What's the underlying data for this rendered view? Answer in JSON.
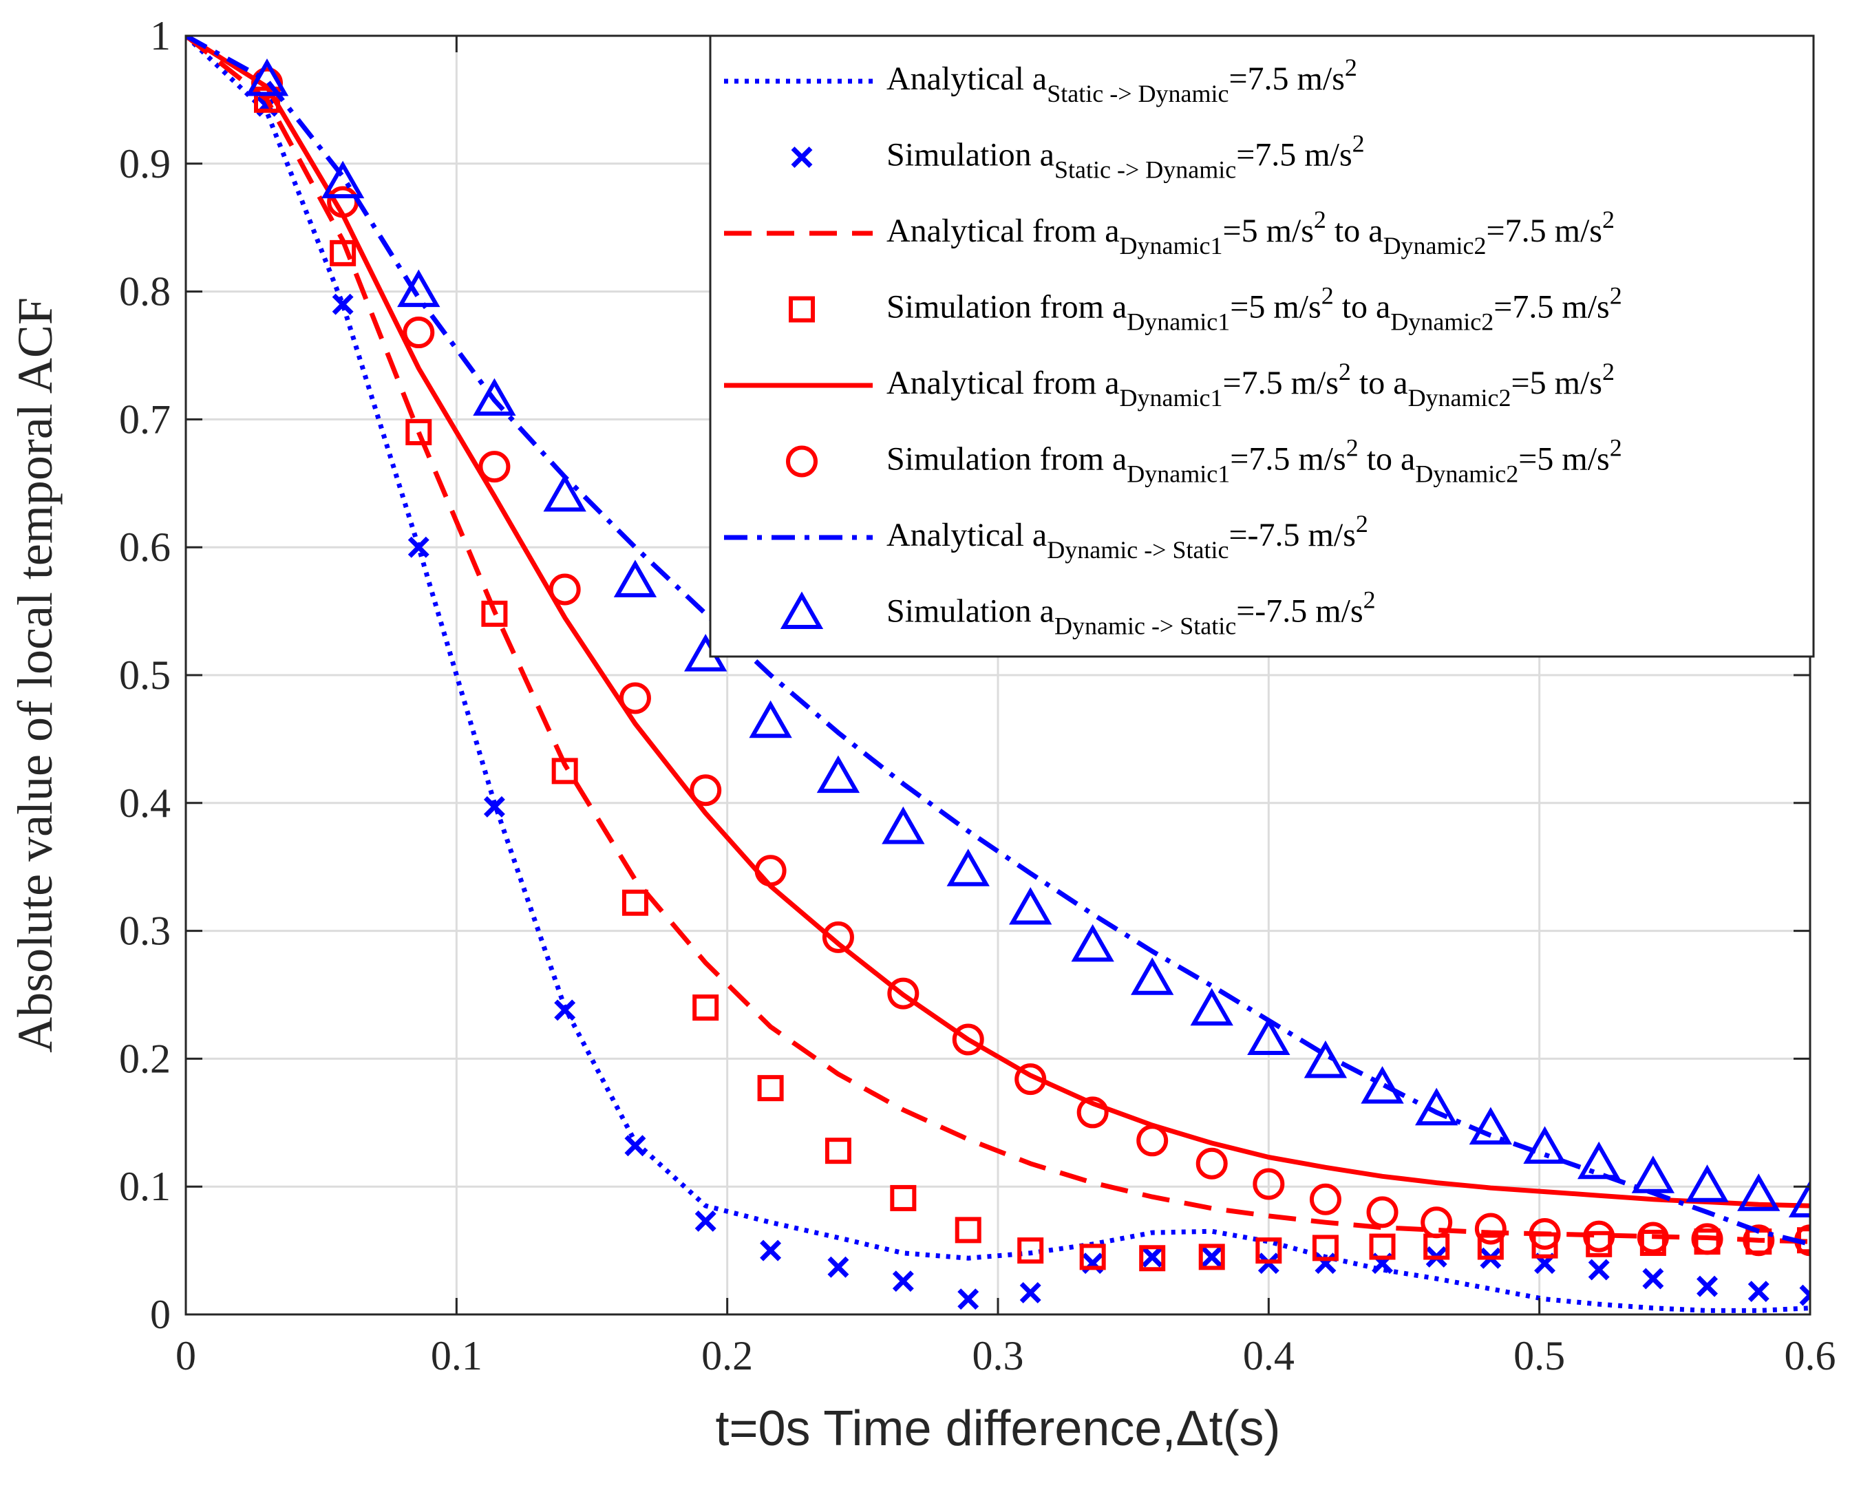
{
  "chart_data": {
    "type": "line",
    "title": "",
    "xlabel": "t=0s Time difference,Δt(s)",
    "ylabel": "Absolute value of local temporal ACF",
    "xlim": [
      0,
      0.6
    ],
    "ylim": [
      0,
      1
    ],
    "xticks": [
      0,
      0.1,
      0.2,
      0.3,
      0.4,
      0.5,
      0.6
    ],
    "xtick_labels": [
      "0",
      "0.1",
      "0.2",
      "0.3",
      "0.4",
      "0.5",
      "0.6"
    ],
    "yticks": [
      0,
      0.1,
      0.2,
      0.3,
      0.4,
      0.5,
      0.6,
      0.7,
      0.8,
      0.9,
      1
    ],
    "ytick_labels": [
      "0",
      "0.1",
      "0.2",
      "0.3",
      "0.4",
      "0.5",
      "0.6",
      "0.7",
      "0.8",
      "0.9",
      "1"
    ],
    "grid": true,
    "legend_position": "top-right",
    "sim_x": [
      0.03,
      0.058,
      0.086,
      0.114,
      0.14,
      0.166,
      0.192,
      0.216,
      0.241,
      0.265,
      0.289,
      0.312,
      0.335,
      0.357,
      0.379,
      0.4,
      0.421,
      0.442,
      0.462,
      0.482,
      0.502,
      0.522,
      0.542,
      0.562,
      0.581,
      0.6
    ],
    "series": [
      {
        "name": "Analytical aStatic -> Dynamic=7.5 m/s2",
        "style": "dotted",
        "color": "#0000ff",
        "x": [
          0,
          0.03,
          0.058,
          0.086,
          0.114,
          0.14,
          0.166,
          0.192,
          0.216,
          0.241,
          0.265,
          0.289,
          0.312,
          0.335,
          0.357,
          0.379,
          0.4,
          0.421,
          0.442,
          0.462,
          0.482,
          0.502,
          0.522,
          0.542,
          0.562,
          0.581,
          0.6
        ],
        "y": [
          1,
          0.94,
          0.79,
          0.6,
          0.4,
          0.24,
          0.135,
          0.085,
          0.072,
          0.06,
          0.048,
          0.044,
          0.048,
          0.055,
          0.064,
          0.065,
          0.057,
          0.045,
          0.035,
          0.028,
          0.02,
          0.012,
          0.008,
          0.005,
          0.003,
          0.003,
          0.005
        ],
        "legend": {
          "prefix": "Analytical a",
          "sub": "Static -> Dynamic",
          "mid": "=7.5 m/s",
          "sup": "2"
        }
      },
      {
        "name": "Simulation aStatic -> Dynamic=7.5 m/s2",
        "style": "marker-x",
        "color": "#0000ff",
        "y": [
          0.945,
          0.79,
          0.6,
          0.397,
          0.238,
          0.132,
          0.073,
          0.05,
          0.037,
          0.026,
          0.012,
          0.017,
          0.04,
          0.045,
          0.045,
          0.04,
          0.04,
          0.04,
          0.045,
          0.044,
          0.04,
          0.035,
          0.028,
          0.022,
          0.018,
          0.015
        ],
        "legend": {
          "prefix": "Simulation a",
          "sub": "Static -> Dynamic",
          "mid": "=7.5 m/s",
          "sup": "2"
        }
      },
      {
        "name": "Analytical from aDynamic1=5 m/s2 to aDynamic2=7.5 m/s2",
        "style": "dashed",
        "color": "#ff0000",
        "x": [
          0,
          0.03,
          0.058,
          0.086,
          0.114,
          0.14,
          0.166,
          0.192,
          0.216,
          0.241,
          0.265,
          0.289,
          0.312,
          0.335,
          0.357,
          0.379,
          0.4,
          0.421,
          0.442,
          0.462,
          0.482,
          0.502,
          0.522,
          0.542,
          0.562,
          0.581,
          0.6
        ],
        "y": [
          1,
          0.95,
          0.84,
          0.69,
          0.55,
          0.43,
          0.34,
          0.275,
          0.225,
          0.188,
          0.16,
          0.137,
          0.118,
          0.103,
          0.092,
          0.083,
          0.077,
          0.072,
          0.068,
          0.066,
          0.064,
          0.063,
          0.062,
          0.061,
          0.06,
          0.058,
          0.057
        ],
        "legend": {
          "prefix": "Analytical from a",
          "sub": "Dynamic1",
          "mid": "=5 m/s",
          "sup": "2",
          "mid2": " to a",
          "sub2": "Dynamic2",
          "mid3": "=7.5 m/s",
          "sup2": "2"
        }
      },
      {
        "name": "Simulation from aDynamic1=5 m/s2 to aDynamic2=7.5 m/s2",
        "style": "marker-square",
        "color": "#ff0000",
        "y": [
          0.95,
          0.83,
          0.69,
          0.548,
          0.425,
          0.322,
          0.24,
          0.177,
          0.128,
          0.091,
          0.066,
          0.05,
          0.045,
          0.044,
          0.045,
          0.05,
          0.052,
          0.053,
          0.053,
          0.053,
          0.054,
          0.055,
          0.056,
          0.057,
          0.057,
          0.058
        ],
        "legend": {
          "prefix": "Simulation from a",
          "sub": "Dynamic1",
          "mid": "=5 m/s",
          "sup": "2",
          "mid2": " to a",
          "sub2": "Dynamic2",
          "mid3": "=7.5 m/s",
          "sup2": "2"
        }
      },
      {
        "name": "Analytical from aDynamic1=7.5 m/s2 to aDynamic2=5 m/s2",
        "style": "solid",
        "color": "#ff0000",
        "x": [
          0,
          0.03,
          0.058,
          0.086,
          0.114,
          0.14,
          0.166,
          0.192,
          0.216,
          0.241,
          0.265,
          0.289,
          0.312,
          0.335,
          0.357,
          0.379,
          0.4,
          0.421,
          0.442,
          0.462,
          0.482,
          0.502,
          0.522,
          0.542,
          0.562,
          0.581,
          0.6
        ],
        "y": [
          1,
          0.96,
          0.86,
          0.74,
          0.64,
          0.545,
          0.462,
          0.392,
          0.335,
          0.29,
          0.25,
          0.215,
          0.187,
          0.165,
          0.148,
          0.134,
          0.123,
          0.115,
          0.108,
          0.103,
          0.099,
          0.096,
          0.093,
          0.09,
          0.088,
          0.086,
          0.085
        ],
        "legend": {
          "prefix": "Analytical from a",
          "sub": "Dynamic1",
          "mid": "=7.5 m/s",
          "sup": "2",
          "mid2": " to a",
          "sub2": "Dynamic2",
          "mid3": "=5 m/s",
          "sup2": "2"
        }
      },
      {
        "name": "Simulation from aDynamic1=7.5 m/s2 to aDynamic2=5 m/s2",
        "style": "marker-circle",
        "color": "#ff0000",
        "y": [
          0.963,
          0.87,
          0.768,
          0.663,
          0.567,
          0.482,
          0.41,
          0.347,
          0.295,
          0.251,
          0.215,
          0.184,
          0.158,
          0.136,
          0.118,
          0.102,
          0.09,
          0.08,
          0.072,
          0.067,
          0.063,
          0.061,
          0.06,
          0.059,
          0.058,
          0.058
        ],
        "legend": {
          "prefix": "Simulation from a",
          "sub": "Dynamic1",
          "mid": "=7.5 m/s",
          "sup": "2",
          "mid2": " to a",
          "sub2": "Dynamic2",
          "mid3": "=5 m/s",
          "sup2": "2"
        }
      },
      {
        "name": "Analytical aDynamic -> Static=-7.5 m/s2",
        "style": "dashdot",
        "color": "#0000ff",
        "x": [
          0,
          0.03,
          0.058,
          0.086,
          0.114,
          0.14,
          0.166,
          0.192,
          0.216,
          0.241,
          0.265,
          0.289,
          0.312,
          0.335,
          0.357,
          0.379,
          0.4,
          0.421,
          0.442,
          0.462,
          0.482,
          0.502,
          0.522,
          0.542,
          0.562,
          0.581,
          0.6
        ],
        "y": [
          1,
          0.965,
          0.89,
          0.795,
          0.715,
          0.655,
          0.6,
          0.548,
          0.5,
          0.455,
          0.415,
          0.378,
          0.345,
          0.313,
          0.284,
          0.257,
          0.23,
          0.203,
          0.18,
          0.158,
          0.14,
          0.125,
          0.11,
          0.095,
          0.08,
          0.065,
          0.055
        ],
        "legend": {
          "prefix": "Analytical a",
          "sub": "Dynamic -> Static",
          "mid": "=-7.5 m/s",
          "sup": "2"
        }
      },
      {
        "name": "Simulation aDynamic -> Static=-7.5 m/s2",
        "style": "marker-triangle",
        "color": "#0000ff",
        "y": [
          0.965,
          0.885,
          0.8,
          0.715,
          0.64,
          0.573,
          0.515,
          0.463,
          0.42,
          0.38,
          0.347,
          0.317,
          0.288,
          0.262,
          0.238,
          0.215,
          0.197,
          0.177,
          0.16,
          0.145,
          0.13,
          0.118,
          0.107,
          0.1,
          0.093,
          0.088
        ],
        "legend": {
          "prefix": "Simulation a",
          "sub": "Dynamic -> Static",
          "mid": "=-7.5 m/s",
          "sup": "2"
        }
      }
    ]
  }
}
